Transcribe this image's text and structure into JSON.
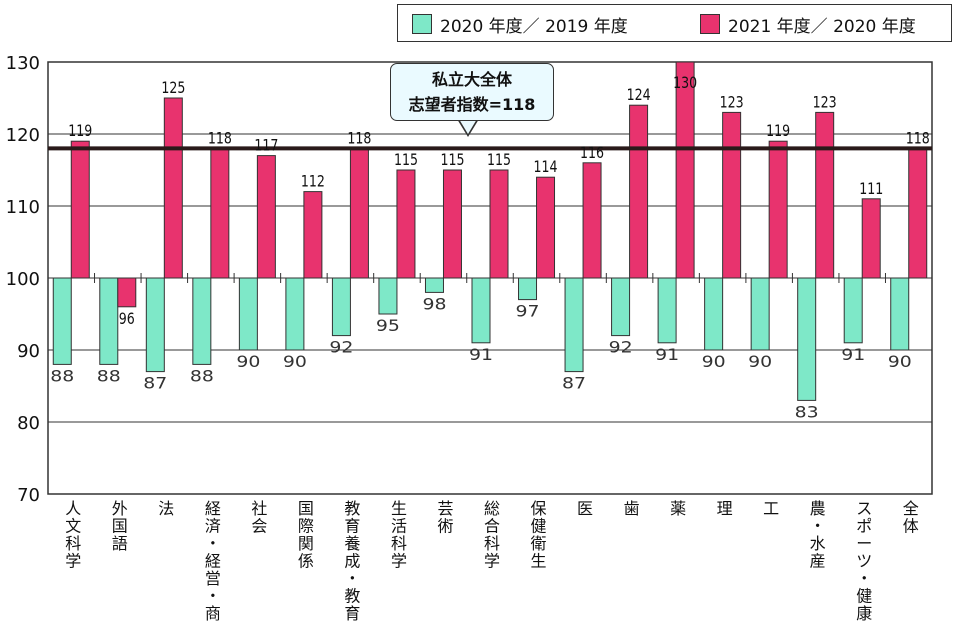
{
  "legend": {
    "items": [
      {
        "label": "2020 年度／ 2019 年度",
        "color": "#7ee8c8"
      },
      {
        "label": "2021 年度／ 2020 年度",
        "color": "#e8336e"
      }
    ]
  },
  "annotation": {
    "line1": "私立大全体",
    "line2": "志望者指数=118"
  },
  "chart_data": {
    "type": "bar",
    "baseline": 100,
    "ylim": [
      70,
      130
    ],
    "yticks": [
      70,
      80,
      90,
      100,
      110,
      120,
      130
    ],
    "reference_line": 118,
    "categories": [
      "人文科学",
      "外国語",
      "法",
      "経済・経営・商",
      "社会",
      "国際関係",
      "教育養成・教育",
      "生活科学",
      "芸術",
      "総合科学",
      "保健衛生",
      "医",
      "歯",
      "薬",
      "理",
      "工",
      "農・水産",
      "スポーツ・健康",
      "全体"
    ],
    "series": [
      {
        "name": "2020 年度／ 2019 年度",
        "color": "#7ee8c8",
        "values": [
          88,
          88,
          87,
          88,
          90,
          90,
          92,
          95,
          98,
          91,
          97,
          87,
          92,
          91,
          90,
          90,
          83,
          91,
          90
        ]
      },
      {
        "name": "2021 年度／ 2020 年度",
        "color": "#e8336e",
        "values": [
          119,
          96,
          125,
          118,
          117,
          112,
          118,
          115,
          115,
          115,
          114,
          116,
          124,
          130,
          123,
          119,
          123,
          111,
          118
        ]
      }
    ]
  }
}
